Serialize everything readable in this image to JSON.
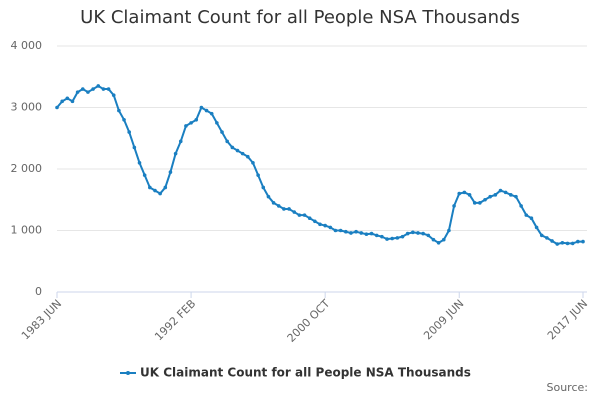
{
  "chart_data": {
    "type": "line",
    "title": "UK Claimant Count for all People NSA Thousands",
    "categories": [
      "1983 JUN",
      null,
      null,
      null,
      null,
      null,
      null,
      null,
      null,
      null,
      null,
      null,
      null,
      null,
      null,
      null,
      null,
      null,
      null,
      null,
      null,
      null,
      null,
      null,
      null,
      null,
      "1992 FEB",
      null,
      null,
      null,
      null,
      null,
      null,
      null,
      null,
      null,
      null,
      null,
      null,
      null,
      null,
      null,
      null,
      null,
      null,
      null,
      null,
      null,
      null,
      null,
      null,
      null,
      "2000 OCT",
      null,
      null,
      null,
      null,
      null,
      null,
      null,
      null,
      null,
      null,
      null,
      null,
      null,
      null,
      null,
      null,
      null,
      null,
      null,
      null,
      null,
      null,
      null,
      null,
      null,
      "2009 JUN",
      null,
      null,
      null,
      null,
      null,
      null,
      null,
      null,
      null,
      null,
      null,
      null,
      null,
      null,
      null,
      null,
      null,
      null,
      null,
      null,
      null,
      null,
      null,
      "2017 JUN"
    ],
    "series": [
      {
        "name": "UK Claimant Count for all People NSA Thousands",
        "color": "#1a7fc1",
        "values": [
          3000,
          3100,
          3150,
          3100,
          3250,
          3300,
          3250,
          3300,
          3350,
          3300,
          3300,
          3200,
          2950,
          2800,
          2600,
          2350,
          2100,
          1900,
          1700,
          1650,
          1600,
          1700,
          1950,
          2250,
          2450,
          2700,
          2750,
          2800,
          3000,
          2950,
          2900,
          2750,
          2600,
          2450,
          2350,
          2300,
          2250,
          2200,
          2100,
          1900,
          1700,
          1550,
          1450,
          1400,
          1350,
          1350,
          1300,
          1250,
          1250,
          1200,
          1150,
          1100,
          1080,
          1050,
          1000,
          1000,
          980,
          960,
          980,
          960,
          940,
          950,
          920,
          900,
          860,
          870,
          880,
          900,
          950,
          970,
          960,
          950,
          920,
          850,
          800,
          850,
          1000,
          1400,
          1600,
          1620,
          1580,
          1450,
          1450,
          1500,
          1550,
          1580,
          1650,
          1620,
          1580,
          1550,
          1400,
          1250,
          1200,
          1050,
          920,
          880,
          830,
          780,
          800,
          790,
          790,
          820,
          820
        ]
      }
    ],
    "ylim": [
      0,
      4000
    ],
    "yticks": [
      0,
      {
        "value": 1000,
        "label": "1 000"
      },
      {
        "value": 2000,
        "label": "2 000"
      },
      {
        "value": 3000,
        "label": "3 000"
      },
      {
        "value": 4000,
        "label": "4 000"
      }
    ],
    "grid": true,
    "source": "Source:"
  }
}
